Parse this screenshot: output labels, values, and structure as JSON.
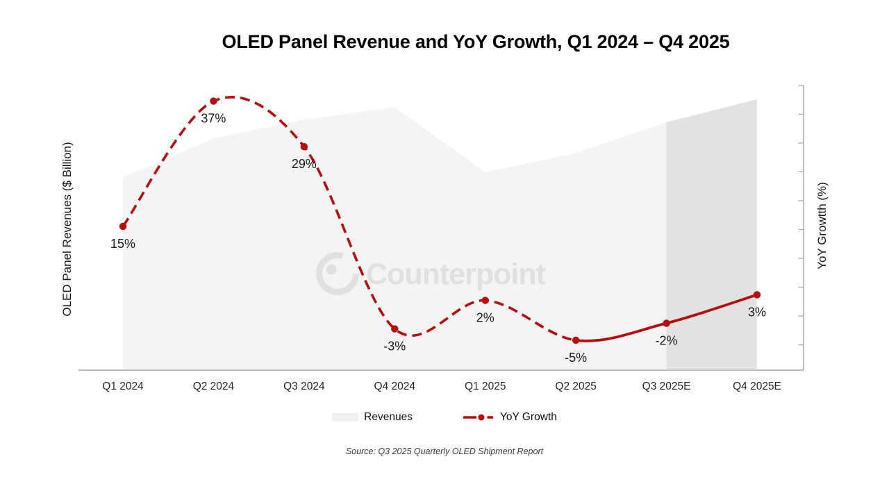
{
  "title": "OLED Panel Revenue and YoY Growth, Q1 2024 – Q4 2025",
  "y_axis_left_label": "OLED Panel Revenues ($ Billion)",
  "y_axis_right_label": "YoY Growtth (%)",
  "watermark": "Counterpoint",
  "source": "Source: Q3 2025 Quarterly OLED Shipment Report",
  "legend": [
    {
      "label": "Revenues",
      "type": "area"
    },
    {
      "label": "YoY Growth",
      "type": "line"
    }
  ],
  "colors": {
    "accent_red": "#b60d0f",
    "area_fill": "#f4f4f4",
    "area_forecast_fill": "#e2e2e2",
    "axis_gray": "#a3a3a3",
    "x_label_color": "#262626",
    "data_label_color": "#1a1a1a",
    "watermark_gray": "#e0e0e0",
    "legend_area_swatch": "#f0f0f0"
  },
  "chart_data": {
    "type": "combo (area + line)",
    "categories": [
      "Q1 2024",
      "Q2 2024",
      "Q3 2024",
      "Q4 2024",
      "Q1 2025",
      "Q2 2025",
      "Q3 2025E",
      "Q4 2025E"
    ],
    "series": [
      {
        "name": "Revenues",
        "type": "area",
        "axis": "left",
        "axis_label": "OLED Panel Revenues ($ Billion)",
        "unit": "relative height, left axis unlabeled (max = 100)",
        "values": [
          71,
          85.5,
          92.5,
          97,
          73,
          80,
          91.5,
          100
        ],
        "forecast_highlight_from": "Q3 2025E"
      },
      {
        "name": "YoY Growth",
        "type": "line",
        "axis": "right",
        "axis_label": "YoY Growtth (%)",
        "unit": "%",
        "values": [
          15,
          37,
          29,
          -3,
          2,
          -5,
          -2,
          3
        ],
        "point_labels": [
          "15%",
          "37%",
          "29%",
          "-3%",
          "2%",
          "-5%",
          "-2%",
          "3%"
        ],
        "line_style_actuals": "dashed (Q1 2024 – Q2 2025)",
        "line_style_estimates": "solid (Q2 2025 – Q4 2025E)"
      }
    ],
    "right_axis": {
      "ticks": "unlabeled minor ticks every ~5 pts",
      "range_estimate": [
        -15,
        40
      ]
    },
    "legend_position": "bottom",
    "grid": false
  }
}
